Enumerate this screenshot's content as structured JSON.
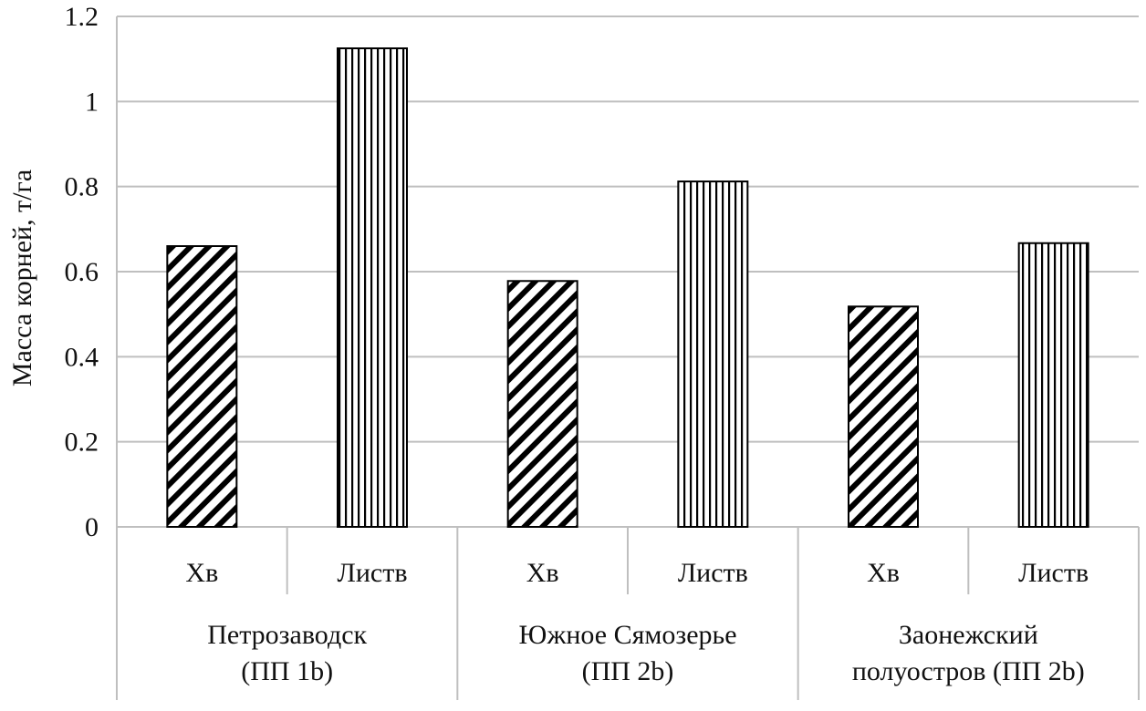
{
  "chart_data": {
    "type": "bar",
    "ylabel": "Масса корней, т/га",
    "ylim": [
      0,
      1.2
    ],
    "yticks": [
      "0",
      "0.2",
      "0.4",
      "0.6",
      "0.8",
      "1",
      "1.2"
    ],
    "grid": true,
    "groups": [
      {
        "label_lines": [
          "Петрозаводск",
          "(ПП 1b)"
        ],
        "bars": [
          {
            "category": "Хв",
            "value": 0.66,
            "pattern": "diagonal"
          },
          {
            "category": "Листв",
            "value": 1.125,
            "pattern": "vertical"
          }
        ]
      },
      {
        "label_lines": [
          "Южное Сямозерье",
          "(ПП 2b)"
        ],
        "bars": [
          {
            "category": "Хв",
            "value": 0.578,
            "pattern": "diagonal"
          },
          {
            "category": "Листв",
            "value": 0.812,
            "pattern": "vertical"
          }
        ]
      },
      {
        "label_lines": [
          "Заонежский",
          "полуостров (ПП 2b)"
        ],
        "bars": [
          {
            "category": "Хв",
            "value": 0.518,
            "pattern": "diagonal"
          },
          {
            "category": "Листв",
            "value": 0.667,
            "pattern": "vertical"
          }
        ]
      }
    ],
    "colors": {
      "grid": "#bfbfbf",
      "bar_stroke": "#000000",
      "bar_pattern": "#000000"
    }
  }
}
